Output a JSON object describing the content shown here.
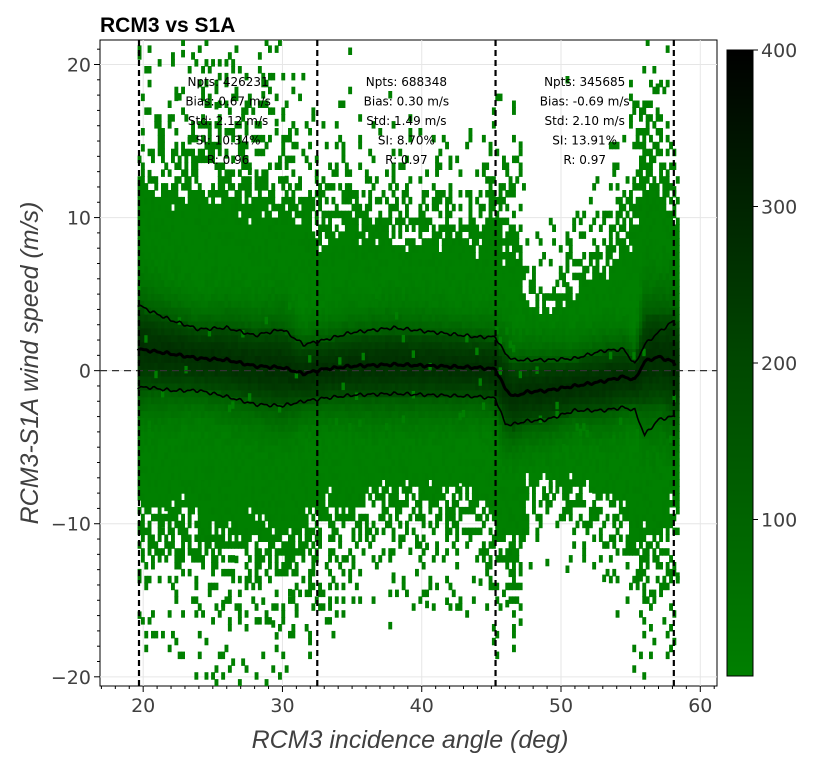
{
  "chart_data": {
    "type": "heatmap",
    "title": "RCM3 vs S1A",
    "xlabel": "RCM3 incidence angle (deg)",
    "ylabel": "RCM3-S1A wind speed (m/s)",
    "xlim": [
      16.9,
      61.2
    ],
    "ylim": [
      -20.6,
      21.6
    ],
    "xticks": [
      {
        "value": 20,
        "label": "20"
      },
      {
        "value": 30,
        "label": "30"
      },
      {
        "value": 40,
        "label": "40"
      },
      {
        "value": 50,
        "label": "50"
      },
      {
        "value": 60,
        "label": "60"
      }
    ],
    "yticks": [
      {
        "value": -20,
        "label": "−20"
      },
      {
        "value": -10,
        "label": "−10"
      },
      {
        "value": 0,
        "label": "0"
      },
      {
        "value": 10,
        "label": "10"
      },
      {
        "value": 20,
        "label": "20"
      }
    ],
    "grid": true,
    "zero_line": 0,
    "colorbar": {
      "range": [
        0,
        400
      ],
      "ticks": [
        {
          "value": 100,
          "label": "100"
        },
        {
          "value": 200,
          "label": "200"
        },
        {
          "value": 300,
          "label": "300"
        },
        {
          "value": 400,
          "label": "400"
        }
      ],
      "color_low": "#007f00",
      "color_high": "#000000"
    },
    "data_extent_x": [
      19.6,
      58.3
    ],
    "segment_boundaries": [
      19.7,
      32.5,
      45.3,
      58.1
    ],
    "segment_stats": [
      {
        "x_center": 26.1,
        "lines": [
          "Npts: 426231",
          "Bias: 0.67 m/s",
          "Std: 2.12 m/s",
          "SI: 10.34%",
          "R: 0.96"
        ]
      },
      {
        "x_center": 38.9,
        "lines": [
          "Npts: 688348",
          "Bias: 0.30 m/s",
          "Std: 1.49 m/s",
          "SI: 8.70%",
          "R: 0.97"
        ]
      },
      {
        "x_center": 51.7,
        "lines": [
          "Npts: 345685",
          "Bias: -0.69 m/s",
          "Std: 2.10 m/s",
          "SI: 13.91%",
          "R: 0.97"
        ]
      }
    ],
    "x_knots": [
      19.6,
      20.5,
      22,
      24,
      26,
      28,
      30,
      31.5,
      33,
      35,
      38,
      41,
      44,
      45.3,
      46,
      46.6,
      47.5,
      49,
      51,
      53,
      54.5,
      55.3,
      56,
      57,
      58,
      58.3
    ],
    "mean_curve": [
      1.4,
      1.3,
      1.1,
      0.8,
      0.7,
      0.3,
      0.2,
      -0.2,
      0.1,
      0.3,
      0.4,
      0.3,
      0.2,
      0.1,
      -1.2,
      -1.7,
      -1.4,
      -1.3,
      -1.0,
      -0.7,
      -0.4,
      -0.6,
      0.6,
      0.9,
      0.6,
      0.2
    ],
    "upper_curve": [
      4.3,
      3.9,
      3.3,
      2.7,
      2.8,
      2.3,
      2.7,
      1.7,
      2.0,
      2.5,
      2.8,
      2.5,
      2.2,
      2.2,
      1.1,
      0.7,
      0.7,
      0.7,
      0.8,
      1.3,
      1.4,
      0.4,
      1.7,
      2.5,
      3.2,
      2.9
    ],
    "lower_curve": [
      -1.1,
      -1.1,
      -1.3,
      -1.3,
      -1.7,
      -2.2,
      -2.3,
      -2.0,
      -1.8,
      -1.6,
      -1.5,
      -1.6,
      -1.7,
      -1.8,
      -3.5,
      -3.5,
      -3.3,
      -3.2,
      -2.6,
      -2.6,
      -2.4,
      -2.6,
      -4.2,
      -3.2,
      -3.0,
      -3.0
    ],
    "spread_curve": [
      9.2,
      9.0,
      8.5,
      9.5,
      10.0,
      9.0,
      9.6,
      8.8,
      7.4,
      8.0,
      7.0,
      7.2,
      7.0,
      9.0,
      7.5,
      9.5,
      5.2,
      4.8,
      5.4,
      6.2,
      7.5,
      9.0,
      10.5,
      10.2,
      8.5,
      7.5
    ],
    "series": [
      {
        "values": "mean_curve"
      },
      {
        "values": "upper_curve"
      },
      {
        "values": "lower_curve"
      }
    ]
  }
}
